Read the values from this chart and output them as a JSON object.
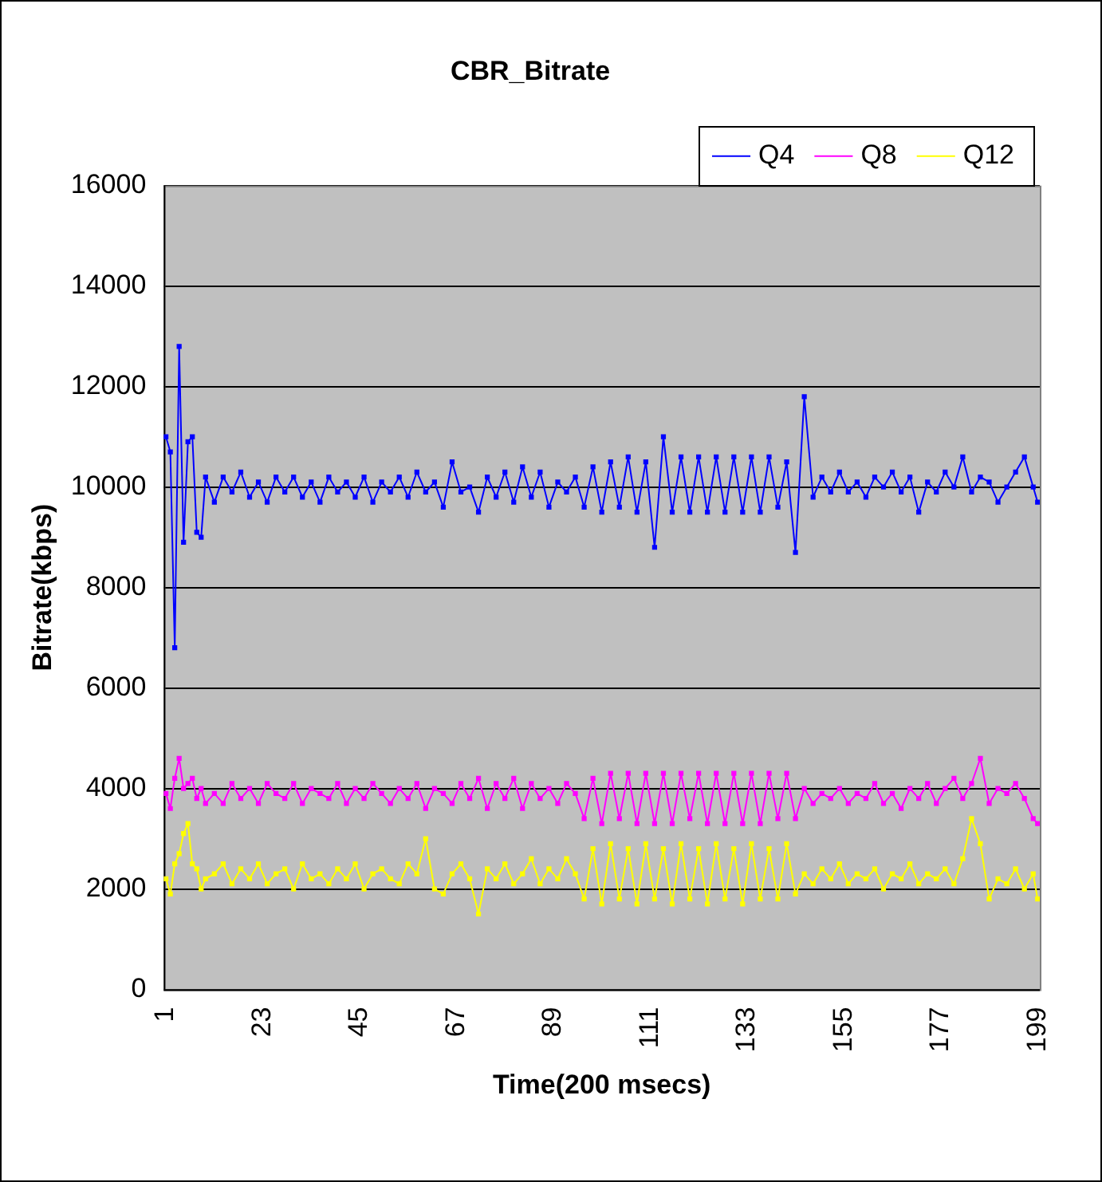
{
  "chart_data": {
    "type": "line",
    "title": "CBR_Bitrate",
    "xlabel": "Time(200 msecs)",
    "ylabel": "Bitrate(kbps)",
    "x": [
      1,
      2,
      3,
      4,
      5,
      6,
      7,
      8,
      9,
      10,
      12,
      14,
      16,
      18,
      20,
      22,
      24,
      26,
      28,
      30,
      32,
      34,
      36,
      38,
      40,
      42,
      44,
      46,
      48,
      50,
      52,
      54,
      56,
      58,
      60,
      62,
      64,
      66,
      68,
      70,
      72,
      74,
      76,
      78,
      80,
      82,
      84,
      86,
      88,
      90,
      92,
      94,
      96,
      98,
      100,
      102,
      104,
      106,
      108,
      110,
      112,
      114,
      116,
      118,
      120,
      122,
      124,
      126,
      128,
      130,
      132,
      134,
      136,
      138,
      140,
      142,
      144,
      146,
      148,
      150,
      152,
      154,
      156,
      158,
      160,
      162,
      164,
      166,
      168,
      170,
      172,
      174,
      176,
      178,
      180,
      182,
      184,
      186,
      188,
      190,
      192,
      194,
      196,
      198,
      199
    ],
    "series": [
      {
        "name": "Q4",
        "color": "#0000ff",
        "values": [
          11000,
          10700,
          6800,
          12800,
          8900,
          10900,
          11000,
          9100,
          9000,
          10200,
          9700,
          10200,
          9900,
          10300,
          9800,
          10100,
          9700,
          10200,
          9900,
          10200,
          9800,
          10100,
          9700,
          10200,
          9900,
          10100,
          9800,
          10200,
          9700,
          10100,
          9900,
          10200,
          9800,
          10300,
          9900,
          10100,
          9600,
          10500,
          9900,
          10000,
          9500,
          10200,
          9800,
          10300,
          9700,
          10400,
          9800,
          10300,
          9600,
          10100,
          9900,
          10200,
          9600,
          10400,
          9500,
          10500,
          9600,
          10600,
          9500,
          10500,
          8800,
          11000,
          9500,
          10600,
          9500,
          10600,
          9500,
          10600,
          9500,
          10600,
          9500,
          10600,
          9500,
          10600,
          9600,
          10500,
          8700,
          11800,
          9800,
          10200,
          9900,
          10300,
          9900,
          10100,
          9800,
          10200,
          10000,
          10300,
          9900,
          10200,
          9500,
          10100,
          9900,
          10300,
          10000,
          10600,
          9900,
          10200,
          10100,
          9700,
          10000,
          10300,
          10600,
          10000,
          9700
        ]
      },
      {
        "name": "Q8",
        "color": "#ff00ff",
        "values": [
          3900,
          3600,
          4200,
          4600,
          4000,
          4100,
          4200,
          3800,
          4000,
          3700,
          3900,
          3700,
          4100,
          3800,
          4000,
          3700,
          4100,
          3900,
          3800,
          4100,
          3700,
          4000,
          3900,
          3800,
          4100,
          3700,
          4000,
          3800,
          4100,
          3900,
          3700,
          4000,
          3800,
          4100,
          3600,
          4000,
          3900,
          3700,
          4100,
          3800,
          4200,
          3600,
          4100,
          3800,
          4200,
          3600,
          4100,
          3800,
          4000,
          3700,
          4100,
          3900,
          3400,
          4200,
          3300,
          4300,
          3400,
          4300,
          3300,
          4300,
          3300,
          4300,
          3300,
          4300,
          3400,
          4300,
          3300,
          4300,
          3300,
          4300,
          3300,
          4300,
          3300,
          4300,
          3400,
          4300,
          3400,
          4000,
          3700,
          3900,
          3800,
          4000,
          3700,
          3900,
          3800,
          4100,
          3700,
          3900,
          3600,
          4000,
          3800,
          4100,
          3700,
          4000,
          4200,
          3800,
          4100,
          4600,
          3700,
          4000,
          3900,
          4100,
          3800,
          3400,
          3300
        ]
      },
      {
        "name": "Q12",
        "color": "#ffff00",
        "values": [
          2200,
          1900,
          2500,
          2700,
          3100,
          3300,
          2500,
          2400,
          2000,
          2200,
          2300,
          2500,
          2100,
          2400,
          2200,
          2500,
          2100,
          2300,
          2400,
          2000,
          2500,
          2200,
          2300,
          2100,
          2400,
          2200,
          2500,
          2000,
          2300,
          2400,
          2200,
          2100,
          2500,
          2300,
          3000,
          2000,
          1900,
          2300,
          2500,
          2200,
          1500,
          2400,
          2200,
          2500,
          2100,
          2300,
          2600,
          2100,
          2400,
          2200,
          2600,
          2300,
          1800,
          2800,
          1700,
          2900,
          1800,
          2800,
          1700,
          2900,
          1800,
          2800,
          1700,
          2900,
          1800,
          2800,
          1700,
          2900,
          1800,
          2800,
          1700,
          2900,
          1800,
          2800,
          1800,
          2900,
          1900,
          2300,
          2100,
          2400,
          2200,
          2500,
          2100,
          2300,
          2200,
          2400,
          2000,
          2300,
          2200,
          2500,
          2100,
          2300,
          2200,
          2400,
          2100,
          2600,
          3400,
          2900,
          1800,
          2200,
          2100,
          2400,
          2000,
          2300,
          1800
        ]
      }
    ],
    "xlim": [
      0.5,
      199.5
    ],
    "xticks": [
      1,
      23,
      45,
      67,
      89,
      111,
      133,
      155,
      177,
      199
    ],
    "ylim": [
      0,
      16000
    ],
    "yticks": [
      0,
      2000,
      4000,
      6000,
      8000,
      10000,
      12000,
      14000,
      16000
    ],
    "grid": "y",
    "legend": "top",
    "marker": "square",
    "line_style": "solid"
  }
}
